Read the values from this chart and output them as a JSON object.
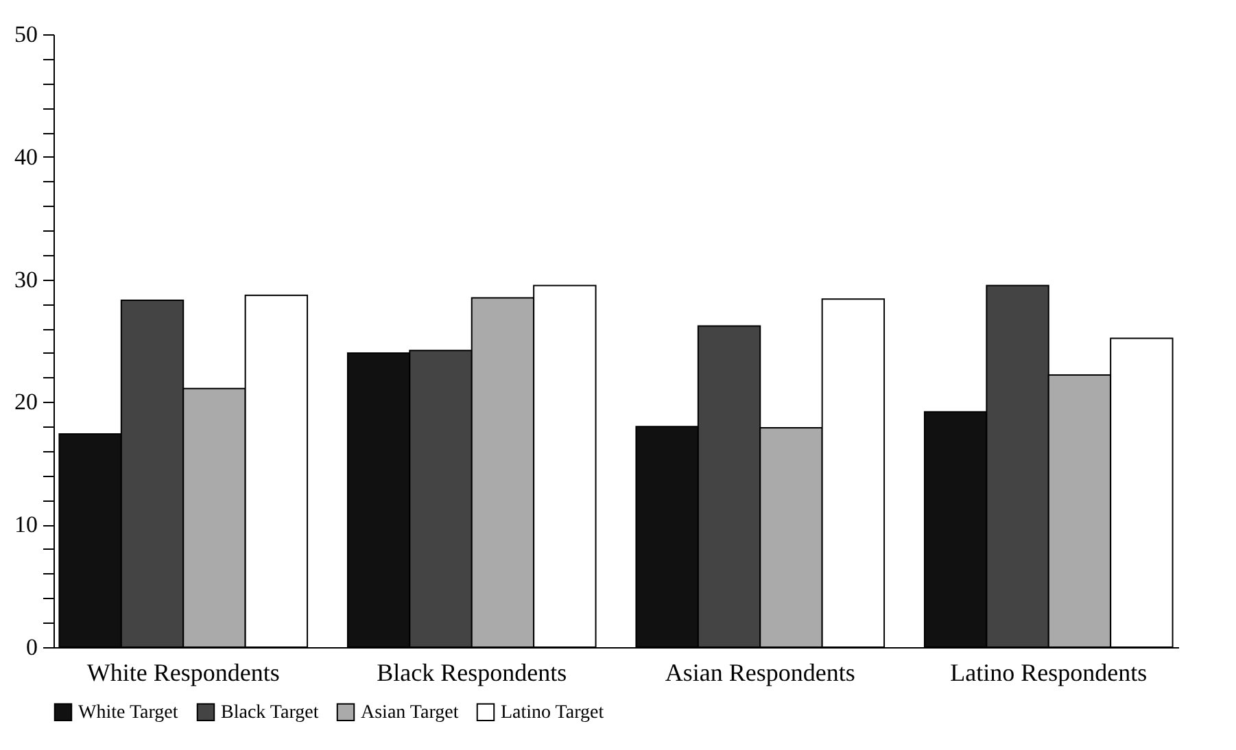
{
  "chart_data": {
    "type": "bar",
    "categories": [
      "White Respondents",
      "Black Respondents",
      "Asian Respondents",
      "Latino Respondents"
    ],
    "series": [
      {
        "name": "White Target",
        "color": "#111111",
        "values": [
          17.4,
          24.0,
          18.0,
          19.2
        ]
      },
      {
        "name": "Black Target",
        "color": "#444444",
        "values": [
          28.3,
          24.2,
          26.2,
          29.5
        ]
      },
      {
        "name": "Asian Target",
        "color": "#aaaaaa",
        "values": [
          21.1,
          28.5,
          17.9,
          22.2
        ]
      },
      {
        "name": "Latino Target",
        "color": "#ffffff",
        "values": [
          28.7,
          29.5,
          28.4,
          25.2
        ]
      }
    ],
    "ylim": [
      0,
      50
    ],
    "yticks": [
      0,
      {
        "value": 2,
        "label": null
      },
      {
        "value": 4,
        "label": null
      },
      {
        "value": 6,
        "label": null
      },
      {
        "value": 8,
        "label": null
      },
      10,
      {
        "value": 12,
        "label": null
      },
      {
        "value": 14,
        "label": null
      },
      {
        "value": 16,
        "label": null
      },
      {
        "value": 18,
        "label": null
      },
      20,
      {
        "value": 22,
        "label": null
      },
      {
        "value": 24,
        "label": null
      },
      {
        "value": 26,
        "label": null
      },
      {
        "value": 28,
        "label": null
      },
      30,
      {
        "value": 32,
        "label": null
      },
      {
        "value": 34,
        "label": null
      },
      {
        "value": 36,
        "label": null
      },
      {
        "value": 38,
        "label": null
      },
      40,
      {
        "value": 42,
        "label": null
      },
      {
        "value": 44,
        "label": null
      },
      {
        "value": 46,
        "label": null
      },
      {
        "value": 48,
        "label": null
      },
      50
    ],
    "grid": false,
    "legend": "bottom"
  }
}
